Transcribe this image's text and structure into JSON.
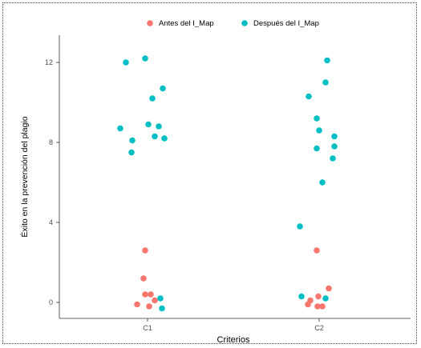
{
  "chart_data": {
    "type": "scatter",
    "xlabel": "Criterios",
    "ylabel": "Éxito en la prevención del plagio",
    "categories": [
      "C1",
      "C2"
    ],
    "yticks": [
      0,
      4,
      8,
      12
    ],
    "ylim": [
      -0.6,
      14.0
    ],
    "grid": false,
    "legend_position": "top",
    "series": [
      {
        "name": "Antes del I_Map",
        "color": "#F8766D",
        "points": [
          {
            "x": "C1",
            "jitter": -0.13,
            "y": -0.1
          },
          {
            "x": "C1",
            "jitter": -0.05,
            "y": 1.2
          },
          {
            "x": "C1",
            "jitter": -0.03,
            "y": 2.6
          },
          {
            "x": "C1",
            "jitter": -0.03,
            "y": 0.4
          },
          {
            "x": "C1",
            "jitter": 0.02,
            "y": -0.2
          },
          {
            "x": "C1",
            "jitter": 0.04,
            "y": 0.4
          },
          {
            "x": "C1",
            "jitter": 0.09,
            "y": 0.1
          },
          {
            "x": "C2",
            "jitter": -0.14,
            "y": -0.1
          },
          {
            "x": "C2",
            "jitter": -0.11,
            "y": 0.1
          },
          {
            "x": "C2",
            "jitter": -0.03,
            "y": 2.6
          },
          {
            "x": "C2",
            "jitter": -0.01,
            "y": 0.3
          },
          {
            "x": "C2",
            "jitter": -0.02,
            "y": -0.2
          },
          {
            "x": "C2",
            "jitter": 0.04,
            "y": -0.2
          },
          {
            "x": "C2",
            "jitter": 0.12,
            "y": 0.7
          }
        ]
      },
      {
        "name": "Después del I_Map",
        "color": "#00BFC4",
        "points": [
          {
            "x": "C1",
            "jitter": -0.34,
            "y": 8.7
          },
          {
            "x": "C1",
            "jitter": -0.27,
            "y": 12.0
          },
          {
            "x": "C1",
            "jitter": -0.19,
            "y": 8.1
          },
          {
            "x": "C1",
            "jitter": -0.2,
            "y": 7.5
          },
          {
            "x": "C1",
            "jitter": -0.03,
            "y": 12.2
          },
          {
            "x": "C1",
            "jitter": 0.01,
            "y": 8.9
          },
          {
            "x": "C1",
            "jitter": 0.06,
            "y": 10.2
          },
          {
            "x": "C1",
            "jitter": 0.09,
            "y": 8.3
          },
          {
            "x": "C1",
            "jitter": 0.14,
            "y": 8.8
          },
          {
            "x": "C1",
            "jitter": 0.19,
            "y": 10.7
          },
          {
            "x": "C1",
            "jitter": 0.21,
            "y": 8.2
          },
          {
            "x": "C1",
            "jitter": 0.16,
            "y": 0.2
          },
          {
            "x": "C1",
            "jitter": 0.18,
            "y": -0.3
          },
          {
            "x": "C2",
            "jitter": -0.24,
            "y": 3.8
          },
          {
            "x": "C2",
            "jitter": -0.22,
            "y": 0.3
          },
          {
            "x": "C2",
            "jitter": -0.13,
            "y": 10.3
          },
          {
            "x": "C2",
            "jitter": -0.03,
            "y": 9.2
          },
          {
            "x": "C2",
            "jitter": 0.0,
            "y": 8.6
          },
          {
            "x": "C2",
            "jitter": -0.03,
            "y": 7.7
          },
          {
            "x": "C2",
            "jitter": 0.04,
            "y": 6.0
          },
          {
            "x": "C2",
            "jitter": 0.08,
            "y": 0.2
          },
          {
            "x": "C2",
            "jitter": 0.08,
            "y": 11.0
          },
          {
            "x": "C2",
            "jitter": 0.1,
            "y": 12.1
          },
          {
            "x": "C2",
            "jitter": 0.17,
            "y": 7.2
          },
          {
            "x": "C2",
            "jitter": 0.19,
            "y": 8.3
          },
          {
            "x": "C2",
            "jitter": 0.19,
            "y": 7.8
          }
        ]
      }
    ]
  }
}
